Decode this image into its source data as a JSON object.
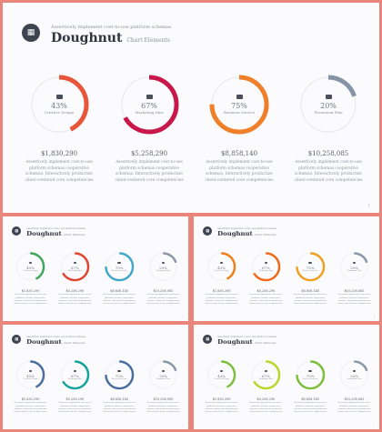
{
  "header": {
    "subtitle": "Assertively implement cost-to-use platform schemas",
    "title": "Doughnut",
    "title_suffix": "Chart Elements"
  },
  "items": [
    {
      "percent_label": "43%",
      "label": "Creative Design",
      "amount": "$1,830,290",
      "description": "Assertively implement cost-to-use platform schemas cooperative schemas. Interactively productize client-centered core competencies",
      "value": 0.43
    },
    {
      "percent_label": "67%",
      "label": "Marketing Idea",
      "amount": "$5,258,290",
      "description": "Assertively implement cost-to-use platform schemas cooperative schemas. Interactively productize client-centered core competencies",
      "value": 0.67
    },
    {
      "percent_label": "75%",
      "label": "Business Service",
      "amount": "$8,858,140",
      "description": "Assertively implement cost-to-use platform schemas cooperative schemas. Interactively productize client-centered core competencies",
      "value": 0.75
    },
    {
      "percent_label": "20%",
      "label": "Promotion Plan",
      "amount": "$10,258,085",
      "description": "Assertively implement cost-to-use platform schemas cooperative schemas. Interactively productize client-centered core competencies",
      "value": 0.2
    }
  ],
  "slides": [
    {
      "colors": [
        "#e9553a",
        "#c8184a",
        "#f07f2a",
        "#8794a6"
      ],
      "page": "1"
    },
    {
      "colors": [
        "#3fa75e",
        "#e0462f",
        "#43a7c9",
        "#8a95a6"
      ],
      "page": "2"
    },
    {
      "colors": [
        "#f07f1a",
        "#f06a1a",
        "#f0a020",
        "#8a95a6"
      ],
      "page": "3"
    },
    {
      "colors": [
        "#4a6f9e",
        "#14a39a",
        "#4a6f9e",
        "#8a95a6"
      ],
      "page": "4"
    },
    {
      "colors": [
        "#7cbf3a",
        "#bcd52a",
        "#7cbf3a",
        "#8a95a6"
      ],
      "page": "5"
    }
  ],
  "track_color": "#e6e8ee",
  "icon": "briefcase-icon",
  "header_icon": "grid-icon"
}
